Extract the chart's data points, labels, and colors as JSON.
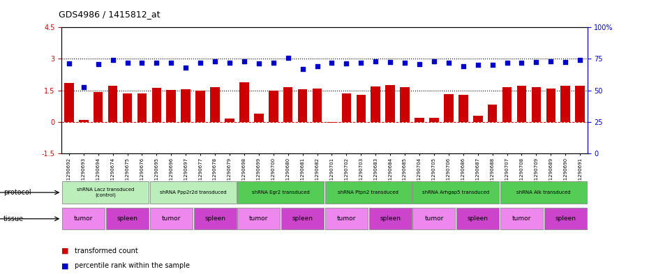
{
  "title": "GDS4986 / 1415812_at",
  "sample_ids": [
    "GSM1290692",
    "GSM1290693",
    "GSM1290694",
    "GSM1290674",
    "GSM1290675",
    "GSM1290676",
    "GSM1290695",
    "GSM1290696",
    "GSM1290697",
    "GSM1290677",
    "GSM1290678",
    "GSM1290679",
    "GSM1290698",
    "GSM1290699",
    "GSM1290700",
    "GSM1290680",
    "GSM1290681",
    "GSM1290682",
    "GSM1290701",
    "GSM1290702",
    "GSM1290703",
    "GSM1290683",
    "GSM1290684",
    "GSM1290685",
    "GSM1290704",
    "GSM1290705",
    "GSM1290706",
    "GSM1290686",
    "GSM1290687",
    "GSM1290688",
    "GSM1290707",
    "GSM1290708",
    "GSM1290709",
    "GSM1290689",
    "GSM1290690",
    "GSM1290691"
  ],
  "bar_values": [
    1.85,
    0.08,
    1.43,
    1.72,
    1.35,
    1.35,
    1.62,
    1.52,
    1.57,
    1.5,
    1.65,
    0.15,
    1.9,
    0.4,
    1.5,
    1.65,
    1.55,
    1.6,
    -0.05,
    1.35,
    1.3,
    1.7,
    1.75,
    1.65,
    0.2,
    0.18,
    1.32,
    1.3,
    0.28,
    0.82,
    1.65,
    1.72,
    1.65,
    1.6,
    1.72,
    1.72
  ],
  "blue_values_left_coords": [
    2.8,
    1.65,
    2.75,
    2.95,
    2.82,
    2.82,
    2.82,
    2.82,
    2.58,
    2.82,
    2.88,
    2.82,
    2.88,
    2.8,
    2.82,
    3.05,
    2.52,
    2.65,
    2.82,
    2.8,
    2.82,
    2.9,
    2.85,
    2.82,
    2.75,
    2.9,
    2.82,
    2.65,
    2.72,
    2.72,
    2.82,
    2.82,
    2.85,
    2.9,
    2.85,
    2.95
  ],
  "ylim_left": [
    -1.5,
    4.5
  ],
  "ylim_right": [
    0,
    100
  ],
  "bar_color": "#CC0000",
  "blue_color": "#0000CC",
  "protocols": [
    {
      "label": "shRNA Lacz transduced\n(control)",
      "start": 0,
      "end": 6,
      "color": "#aaddaa"
    },
    {
      "label": "shRNA Ppp2r2d transduced",
      "start": 6,
      "end": 12,
      "color": "#aaddaa"
    },
    {
      "label": "shRNA Egr2 transduced",
      "start": 12,
      "end": 18,
      "color": "#66cc66"
    },
    {
      "label": "shRNA Ptpn2 transduced",
      "start": 18,
      "end": 24,
      "color": "#66cc66"
    },
    {
      "label": "shRNA Arhgap5 transduced",
      "start": 24,
      "end": 30,
      "color": "#66cc66"
    },
    {
      "label": "shRNA Alk transduced",
      "start": 30,
      "end": 36,
      "color": "#66cc66"
    }
  ],
  "tissues": [
    {
      "label": "tumor",
      "start": 0,
      "end": 3,
      "color": "#ee88ee"
    },
    {
      "label": "spleen",
      "start": 3,
      "end": 6,
      "color": "#cc44cc"
    },
    {
      "label": "tumor",
      "start": 6,
      "end": 9,
      "color": "#ee88ee"
    },
    {
      "label": "spleen",
      "start": 9,
      "end": 12,
      "color": "#cc44cc"
    },
    {
      "label": "tumor",
      "start": 12,
      "end": 15,
      "color": "#ee88ee"
    },
    {
      "label": "spleen",
      "start": 15,
      "end": 18,
      "color": "#cc44cc"
    },
    {
      "label": "tumor",
      "start": 18,
      "end": 21,
      "color": "#ee88ee"
    },
    {
      "label": "spleen",
      "start": 21,
      "end": 24,
      "color": "#cc44cc"
    },
    {
      "label": "tumor",
      "start": 24,
      "end": 27,
      "color": "#ee88ee"
    },
    {
      "label": "spleen",
      "start": 27,
      "end": 30,
      "color": "#cc44cc"
    },
    {
      "label": "tumor",
      "start": 30,
      "end": 33,
      "color": "#ee88ee"
    },
    {
      "label": "spleen",
      "start": 33,
      "end": 36,
      "color": "#cc44cc"
    }
  ],
  "background_color": "#ffffff"
}
